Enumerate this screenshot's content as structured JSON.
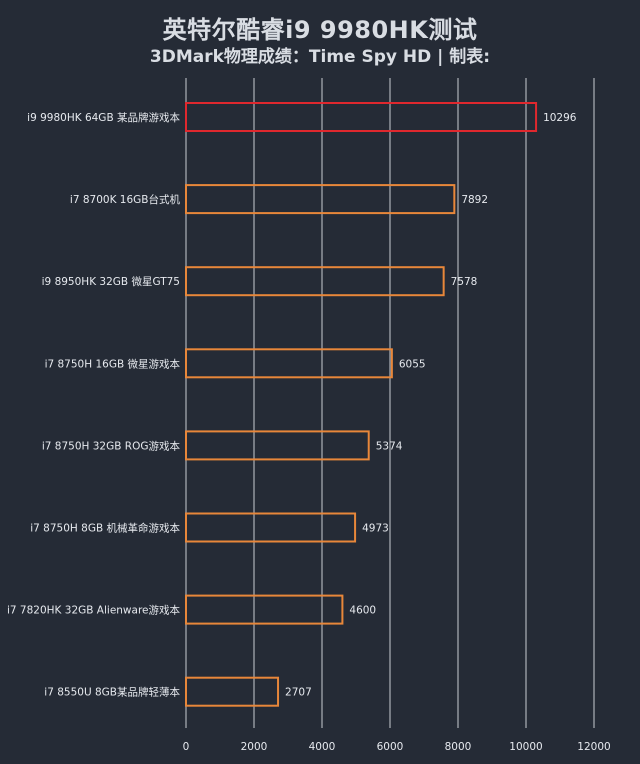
{
  "title": "英特尔酷睿i9 9980HK测试",
  "subtitle": "3DMark物理成绩：Time Spy HD | 制表:",
  "colors": {
    "background": "#252b36",
    "grid": "#c9ccd2",
    "bar_default": "#e8873a",
    "bar_highlight": "#e0282e",
    "text": "#e6e9ee",
    "highlight_text": "#e0282e"
  },
  "chart_data": {
    "type": "bar",
    "orientation": "horizontal",
    "title": "英特尔酷睿i9 9980HK测试",
    "subtitle": "3DMark物理成绩：Time Spy HD | 制表:",
    "categories": [
      "i9 9980HK 64GB 某品牌游戏本",
      "i7 8700K 16GB台式机",
      "i9 8950HK 32GB 微星GT75",
      "i7 8750H 16GB 微星游戏本",
      "i7 8750H 32GB ROG游戏本",
      "i7 8750H 8GB 机械革命游戏本",
      "i7 7820HK 32GB Alienware游戏本",
      "i7 8550U 8GB某品牌轻薄本"
    ],
    "values": [
      10296,
      7892,
      7578,
      6055,
      5374,
      4973,
      4600,
      2707
    ],
    "highlight_index": 0,
    "xlim": [
      0,
      12000
    ],
    "xticks": [
      0,
      2000,
      4000,
      6000,
      8000,
      10000,
      12000
    ],
    "grid": true,
    "bar_style": "outlined"
  }
}
